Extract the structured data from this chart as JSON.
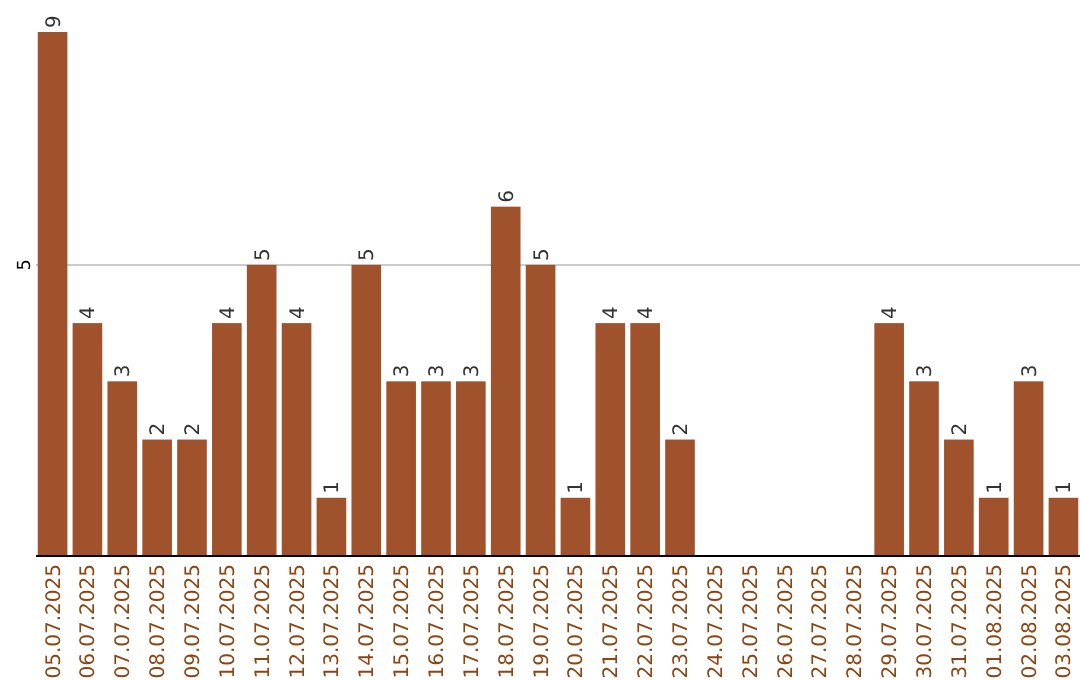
{
  "chart_data": {
    "type": "bar",
    "categories": [
      "05.07.2025",
      "06.07.2025",
      "07.07.2025",
      "08.07.2025",
      "09.07.2025",
      "10.07.2025",
      "11.07.2025",
      "12.07.2025",
      "13.07.2025",
      "14.07.2025",
      "15.07.2025",
      "16.07.2025",
      "17.07.2025",
      "18.07.2025",
      "19.07.2025",
      "20.07.2025",
      "21.07.2025",
      "22.07.2025",
      "23.07.2025",
      "24.07.2025",
      "25.07.2025",
      "26.07.2025",
      "27.07.2025",
      "28.07.2025",
      "29.07.2025",
      "30.07.2025",
      "31.07.2025",
      "01.08.2025",
      "02.08.2025",
      "03.08.2025"
    ],
    "values": [
      9,
      4,
      3,
      2,
      2,
      4,
      5,
      4,
      1,
      5,
      3,
      3,
      3,
      6,
      5,
      1,
      4,
      4,
      2,
      0,
      0,
      0,
      0,
      0,
      4,
      3,
      2,
      1,
      3,
      1
    ],
    "value_labels": [
      "9",
      "4",
      "3",
      "2",
      "2",
      "4",
      "5",
      "4",
      "1",
      "5",
      "3",
      "3",
      "3",
      "6",
      "5",
      "1",
      "4",
      "4",
      "2",
      null,
      null,
      null,
      null,
      null,
      "4",
      "3",
      "2",
      "1",
      "3",
      "1"
    ],
    "color": "#a0522d",
    "ylim": [
      0,
      9
    ],
    "yticks": [
      5
    ],
    "grid": "y"
  }
}
